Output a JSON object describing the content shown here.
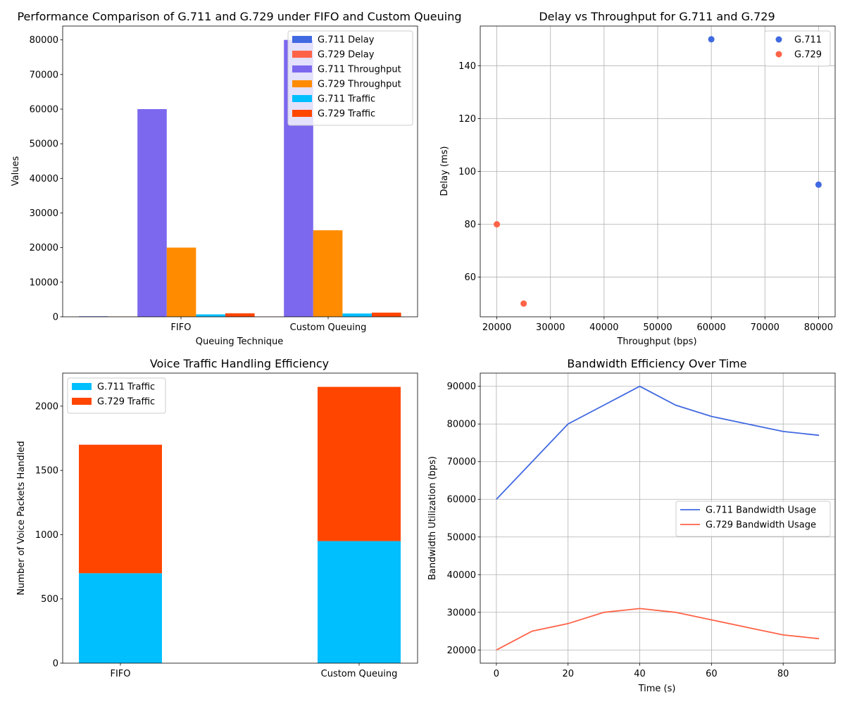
{
  "chart_data": [
    {
      "type": "bar",
      "title": "Performance Comparison of G.711 and G.729 under FIFO and Custom Queuing",
      "xlabel": "Queuing Technique",
      "ylabel": "Values",
      "categories": [
        "FIFO",
        "Custom Queuing"
      ],
      "ylim": [
        0,
        84000
      ],
      "yticks": [
        0,
        10000,
        20000,
        30000,
        40000,
        50000,
        60000,
        70000,
        80000
      ],
      "legend_position": "top-right",
      "series": [
        {
          "name": "G.711 Delay",
          "color": "#4169e1",
          "values": [
            150,
            95
          ]
        },
        {
          "name": "G.729 Delay",
          "color": "#ff6347",
          "values": [
            80,
            50
          ]
        },
        {
          "name": "G.711 Throughput",
          "color": "#7b68ee",
          "values": [
            60000,
            80000
          ]
        },
        {
          "name": "G.729 Throughput",
          "color": "#ff8c00",
          "values": [
            20000,
            25000
          ]
        },
        {
          "name": "G.711 Traffic",
          "color": "#00bfff",
          "values": [
            700,
            950
          ]
        },
        {
          "name": "G.729 Traffic",
          "color": "#ff4500",
          "values": [
            1000,
            1200
          ]
        }
      ]
    },
    {
      "type": "scatter",
      "title": "Delay vs Throughput for G.711 and G.729",
      "xlabel": "Throughput (bps)",
      "ylabel": "Delay (ms)",
      "xlim": [
        16900,
        83100
      ],
      "ylim": [
        45,
        155
      ],
      "xticks": [
        20000,
        30000,
        40000,
        50000,
        60000,
        70000,
        80000
      ],
      "yticks": [
        60,
        80,
        100,
        120,
        140
      ],
      "grid": true,
      "legend_position": "top-right",
      "series": [
        {
          "name": "G.711",
          "color": "#4169e1",
          "points": [
            [
              60000,
              150
            ],
            [
              80000,
              95
            ]
          ]
        },
        {
          "name": "G.729",
          "color": "#ff6347",
          "points": [
            [
              20000,
              80
            ],
            [
              25000,
              50
            ]
          ]
        }
      ]
    },
    {
      "type": "bar",
      "stacked": true,
      "title": "Voice Traffic Handling Efficiency",
      "xlabel": "",
      "ylabel": "Number of Voice Packets Handled",
      "categories": [
        "FIFO",
        "Custom Queuing"
      ],
      "ylim": [
        0,
        2257
      ],
      "yticks": [
        0,
        500,
        1000,
        1500,
        2000
      ],
      "legend_position": "top-left",
      "series": [
        {
          "name": "G.711 Traffic",
          "color": "#00bfff",
          "values": [
            700,
            950
          ]
        },
        {
          "name": "G.729 Traffic",
          "color": "#ff4500",
          "values": [
            1000,
            1200
          ]
        }
      ]
    },
    {
      "type": "line",
      "title": "Bandwidth Efficiency Over Time",
      "xlabel": "Time (s)",
      "ylabel": "Bandwidth Utilization (bps)",
      "x": [
        0,
        10,
        20,
        30,
        40,
        50,
        60,
        70,
        80,
        90
      ],
      "xlim": [
        -4.5,
        94.5
      ],
      "ylim": [
        16500,
        93500
      ],
      "xticks": [
        0,
        20,
        40,
        60,
        80
      ],
      "yticks": [
        20000,
        30000,
        40000,
        50000,
        60000,
        70000,
        80000,
        90000
      ],
      "grid": true,
      "legend_position": "center-right",
      "series": [
        {
          "name": "G.711 Bandwidth Usage",
          "color": "#4169e1",
          "values": [
            60000,
            70000,
            80000,
            85000,
            90000,
            85000,
            82000,
            80000,
            78000,
            77000
          ]
        },
        {
          "name": "G.729 Bandwidth Usage",
          "color": "#ff6347",
          "values": [
            20000,
            25000,
            27000,
            30000,
            31000,
            30000,
            28000,
            26000,
            24000,
            23000
          ]
        }
      ]
    }
  ]
}
